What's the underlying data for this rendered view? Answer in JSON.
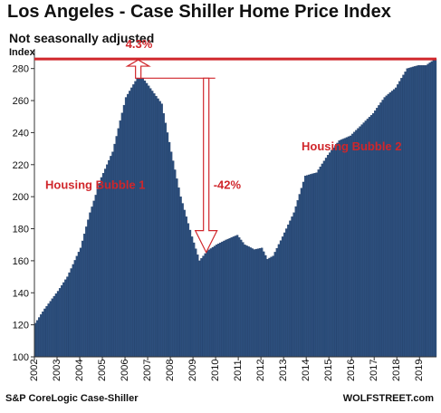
{
  "header": {
    "title": "Los Angeles - Case Shiller Home Price Index",
    "subtitle": "Not seasonally adjusted"
  },
  "footer": {
    "source": "S&P CoreLogic Case-Shiller",
    "brand": "WOLFSTREET.com"
  },
  "colors": {
    "bars": "#2d4f7d",
    "bar_edge": "#1d3a63",
    "accent": "#d0262b"
  },
  "chart_data": {
    "type": "bar",
    "ylabel": "Index",
    "ylim": [
      100,
      290
    ],
    "yticks": [
      100,
      120,
      140,
      160,
      180,
      200,
      220,
      240,
      260,
      280
    ],
    "x_start": "2002-01",
    "x_end": "2019-09",
    "frequency": "monthly",
    "xticks": [
      "2002",
      "2003",
      "2004",
      "2005",
      "2006",
      "2007",
      "2008",
      "2009",
      "2010",
      "2011",
      "2012",
      "2013",
      "2014",
      "2015",
      "2016",
      "2017",
      "2018",
      "2019"
    ],
    "grid": false,
    "legend": "none",
    "anchors": [
      [
        "2002-01",
        121
      ],
      [
        "2002-06",
        130
      ],
      [
        "2003-01",
        141
      ],
      [
        "2003-06",
        150
      ],
      [
        "2004-01",
        168
      ],
      [
        "2004-06",
        190
      ],
      [
        "2004-12",
        212
      ],
      [
        "2005-06",
        228
      ],
      [
        "2006-01",
        262
      ],
      [
        "2006-07",
        274
      ],
      [
        "2006-10",
        274
      ],
      [
        "2007-03",
        266
      ],
      [
        "2007-08",
        258
      ],
      [
        "2008-01",
        228
      ],
      [
        "2008-06",
        200
      ],
      [
        "2008-12",
        175
      ],
      [
        "2009-04",
        160
      ],
      [
        "2009-08",
        166
      ],
      [
        "2010-01",
        170
      ],
      [
        "2010-06",
        173
      ],
      [
        "2010-12",
        176
      ],
      [
        "2011-04",
        170
      ],
      [
        "2011-09",
        167
      ],
      [
        "2012-01",
        168
      ],
      [
        "2012-04",
        161
      ],
      [
        "2012-07",
        163
      ],
      [
        "2012-12",
        175
      ],
      [
        "2013-06",
        190
      ],
      [
        "2013-12",
        213
      ],
      [
        "2014-06",
        215
      ],
      [
        "2014-12",
        226
      ],
      [
        "2015-06",
        235
      ],
      [
        "2015-12",
        238
      ],
      [
        "2016-06",
        245
      ],
      [
        "2016-12",
        252
      ],
      [
        "2017-06",
        262
      ],
      [
        "2017-12",
        268
      ],
      [
        "2018-06",
        280
      ],
      [
        "2018-12",
        282
      ],
      [
        "2019-04",
        282
      ],
      [
        "2019-09",
        286
      ]
    ],
    "reference_line": {
      "value": 286
    },
    "annotations": {
      "increase": "4.3%",
      "decline": "-42%",
      "bubble1": "Housing Bubble 1",
      "bubble2": "Housing Bubble 2"
    }
  }
}
